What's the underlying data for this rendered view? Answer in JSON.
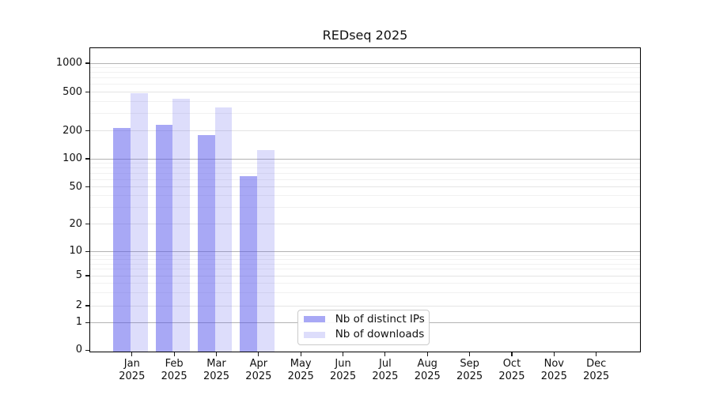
{
  "chart_data": {
    "type": "bar",
    "title": "REDseq 2025",
    "categories": [
      "Jan 2025",
      "Feb 2025",
      "Mar 2025",
      "Apr 2025",
      "May 2025",
      "Jun 2025",
      "Jul 2025",
      "Aug 2025",
      "Sep 2025",
      "Oct 2025",
      "Nov 2025",
      "Dec 2025"
    ],
    "series": [
      {
        "name": "Nb of distinct IPs",
        "fill": "rgba(81,81,235,0.5)",
        "approx_hex_on_white": "#a9a9f5",
        "values": [
          215,
          230,
          180,
          65,
          null,
          null,
          null,
          null,
          null,
          null,
          null,
          null
        ]
      },
      {
        "name": "Nb of downloads",
        "fill": "rgba(81,81,235,0.195)",
        "approx_hex_on_white": "#dcdcfb",
        "values": [
          490,
          425,
          345,
          125,
          null,
          null,
          null,
          null,
          null,
          null,
          null,
          null
        ]
      }
    ],
    "yticks": [
      0,
      1,
      2,
      5,
      10,
      20,
      50,
      100,
      200,
      500,
      1000
    ],
    "xlabel": "",
    "ylabel": "",
    "yscale": "log-like with 0 baseline",
    "ylim": [
      0,
      1400
    ],
    "grid": true,
    "legend_position": "inside bottom center",
    "colors": {
      "grid_major": "#b3b3b3",
      "grid_mid": "#e4e4e4",
      "grid_minor": "#f1f1f1",
      "spine": "#000000",
      "text": "#111111"
    }
  }
}
